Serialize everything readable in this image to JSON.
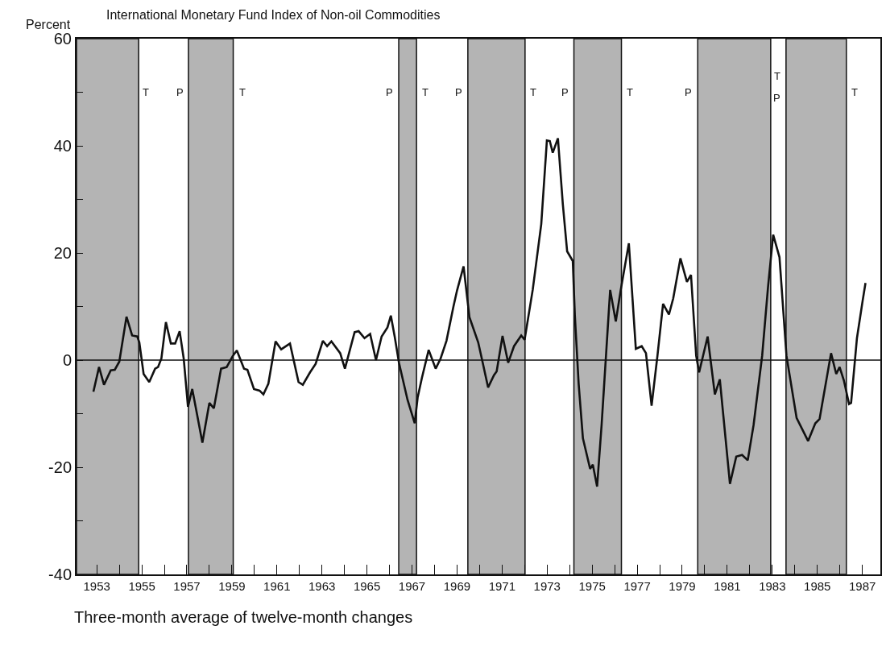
{
  "chart_data": {
    "type": "line",
    "title": "International Monetary Fund Index of Non-oil Commodities",
    "ylabel": "Percent",
    "annotations": [
      "Three-month average of twelve-month changes",
      {
        "text": "T",
        "x": 1955.18,
        "y": 50
      },
      {
        "text": "P",
        "x": 1956.71,
        "y": 50
      },
      {
        "text": "T",
        "x": 1959.46,
        "y": 50
      },
      {
        "text": "P",
        "x": 1965.99,
        "y": 50
      },
      {
        "text": "T",
        "x": 1967.59,
        "y": 50
      },
      {
        "text": "P",
        "x": 1969.09,
        "y": 50
      },
      {
        "text": "T",
        "x": 1972.37,
        "y": 50
      },
      {
        "text": "P",
        "x": 1973.8,
        "y": 50
      },
      {
        "text": "T",
        "x": 1976.69,
        "y": 50
      },
      {
        "text": "P",
        "x": 1979.26,
        "y": 50
      },
      {
        "text": "T",
        "x": 1983.22,
        "y": 53
      },
      {
        "text": "P",
        "x": 1983.22,
        "y": 49
      },
      {
        "text": "T",
        "x": 1986.64,
        "y": 50
      }
    ],
    "series": [
      {
        "color": "#111111",
        "x": [
          1952.85,
          1953.1,
          1953.32,
          1953.62,
          1953.8,
          1954.0,
          1954.32,
          1954.57,
          1954.8,
          1954.89,
          1955.08,
          1955.33,
          1955.59,
          1955.72,
          1955.87,
          1956.07,
          1956.29,
          1956.48,
          1956.68,
          1956.86,
          1957.05,
          1957.24,
          1957.69,
          1958.0,
          1958.2,
          1958.52,
          1958.77,
          1959.03,
          1959.22,
          1959.54,
          1959.69,
          1959.98,
          1960.23,
          1960.4,
          1960.62,
          1960.94,
          1961.19,
          1961.58,
          1961.96,
          1962.15,
          1962.47,
          1962.72,
          1963.04,
          1963.23,
          1963.42,
          1963.81,
          1964.02,
          1964.45,
          1964.63,
          1964.89,
          1965.14,
          1965.4,
          1965.65,
          1965.91,
          1966.06,
          1966.23,
          1966.42,
          1966.8,
          1967.12,
          1967.25,
          1967.44,
          1967.74,
          1968.05,
          1968.27,
          1968.53,
          1968.84,
          1969.0,
          1969.29,
          1969.55,
          1969.94,
          1970.13,
          1970.38,
          1970.64,
          1970.76,
          1971.02,
          1971.27,
          1971.53,
          1971.85,
          1972.0,
          1972.36,
          1972.74,
          1972.99,
          1973.12,
          1973.25,
          1973.48,
          1973.7,
          1973.89,
          1974.14,
          1974.23,
          1974.4,
          1974.59,
          1974.91,
          1975.03,
          1975.22,
          1975.42,
          1975.8,
          1976.05,
          1976.27,
          1976.63,
          1976.94,
          1977.2,
          1977.39,
          1977.64,
          1977.9,
          1978.15,
          1978.41,
          1978.6,
          1978.92,
          1979.21,
          1979.39,
          1979.62,
          1979.75,
          1980.13,
          1980.45,
          1980.67,
          1981.12,
          1981.4,
          1981.66,
          1981.91,
          1982.17,
          1982.55,
          1982.81,
          1983.04,
          1983.32,
          1983.63,
          1984.08,
          1984.59,
          1984.91,
          1985.1,
          1985.61,
          1985.84,
          1985.99,
          1986.18,
          1986.41,
          1986.5,
          1986.76,
          1987.01,
          1987.14
        ],
        "values": [
          -5.9,
          -1.3,
          -4.6,
          -1.9,
          -1.8,
          -0.3,
          8.1,
          4.6,
          4.4,
          3.3,
          -2.6,
          -4.1,
          -1.6,
          -1.3,
          0.3,
          7.1,
          3.1,
          3.1,
          5.4,
          0.3,
          -8.7,
          -5.4,
          -15.4,
          -8.0,
          -9.0,
          -1.6,
          -1.3,
          0.7,
          1.8,
          -1.6,
          -1.8,
          -5.4,
          -5.7,
          -6.4,
          -4.4,
          3.5,
          2.0,
          3.1,
          -4.1,
          -4.6,
          -2.3,
          -0.7,
          3.6,
          2.6,
          3.5,
          1.3,
          -1.6,
          5.2,
          5.4,
          4.1,
          4.9,
          0,
          4.4,
          6.1,
          8.3,
          4.4,
          -0.5,
          -7.4,
          -11.8,
          -7.0,
          -3.3,
          1.9,
          -1.6,
          0.3,
          3.6,
          10.0,
          13.0,
          17.5,
          8.0,
          3.3,
          -0.3,
          -5.1,
          -2.8,
          -2.1,
          4.5,
          -0.5,
          2.6,
          4.6,
          3.8,
          13.1,
          25.4,
          41.0,
          40.9,
          38.7,
          41.4,
          29.0,
          20.3,
          18.5,
          8.5,
          -4.4,
          -14.6,
          -20.3,
          -19.5,
          -23.6,
          -12.1,
          13.1,
          7.2,
          13.1,
          21.8,
          2.1,
          2.6,
          1.3,
          -8.5,
          0.8,
          10.5,
          8.5,
          11.5,
          19.0,
          14.6,
          15.9,
          0.8,
          -2.3,
          4.4,
          -6.4,
          -3.6,
          -23.1,
          -18.0,
          -17.7,
          -18.7,
          -12.1,
          0.8,
          13.6,
          23.4,
          19.2,
          0.8,
          -10.8,
          -15.1,
          -11.8,
          -11.0,
          1.3,
          -2.6,
          -1.3,
          -3.8,
          -8.2,
          -8.0,
          4.1,
          11.0,
          14.4
        ]
      }
    ],
    "bands": [
      {
        "axis": "x",
        "from": 1952.1,
        "to": 1954.86,
        "color": "#b4b4b4"
      },
      {
        "axis": "x",
        "from": 1957.07,
        "to": 1959.06,
        "color": "#b4b4b4"
      },
      {
        "axis": "x",
        "from": 1966.41,
        "to": 1967.2,
        "color": "#b4b4b4"
      },
      {
        "axis": "x",
        "from": 1969.48,
        "to": 1972.02,
        "color": "#b4b4b4"
      },
      {
        "axis": "x",
        "from": 1974.19,
        "to": 1976.3,
        "color": "#b4b4b4"
      },
      {
        "axis": "x",
        "from": 1979.69,
        "to": 1982.93,
        "color": "#b4b4b4"
      },
      {
        "axis": "x",
        "from": 1983.61,
        "to": 1986.29,
        "color": "#b4b4b4"
      }
    ],
    "ref_lines": [
      {
        "axis": "y",
        "value": 0,
        "color": "#111111"
      }
    ],
    "xlim": [
      1952.1,
      1987.8
    ],
    "ylim": [
      -40,
      60
    ],
    "xticks": [
      1953,
      {
        "value": 1954,
        "label": null
      },
      1955,
      {
        "value": 1956,
        "label": null
      },
      1957,
      {
        "value": 1958,
        "label": null
      },
      1959,
      {
        "value": 1960,
        "label": null
      },
      1961,
      {
        "value": 1962,
        "label": null
      },
      1963,
      {
        "value": 1964,
        "label": null
      },
      1965,
      {
        "value": 1966,
        "label": null
      },
      1967,
      {
        "value": 1968,
        "label": null
      },
      1969,
      {
        "value": 1970,
        "label": null
      },
      1971,
      {
        "value": 1972,
        "label": null
      },
      1973,
      {
        "value": 1974,
        "label": null
      },
      1975,
      {
        "value": 1976,
        "label": null
      },
      1977,
      {
        "value": 1978,
        "label": null
      },
      1979,
      {
        "value": 1980,
        "label": null
      },
      1981,
      {
        "value": 1982,
        "label": null
      },
      1983,
      {
        "value": 1984,
        "label": null
      },
      1985,
      {
        "value": 1986,
        "label": null
      },
      1987
    ],
    "yticks": [
      -40,
      {
        "value": -30,
        "label": null
      },
      -20,
      {
        "value": -10,
        "label": null
      },
      0,
      {
        "value": 10,
        "label": null
      },
      20,
      {
        "value": 30,
        "label": null
      },
      40,
      {
        "value": 50,
        "label": null
      },
      60
    ],
    "grid": false,
    "marker": "none",
    "line_style": "solid"
  }
}
